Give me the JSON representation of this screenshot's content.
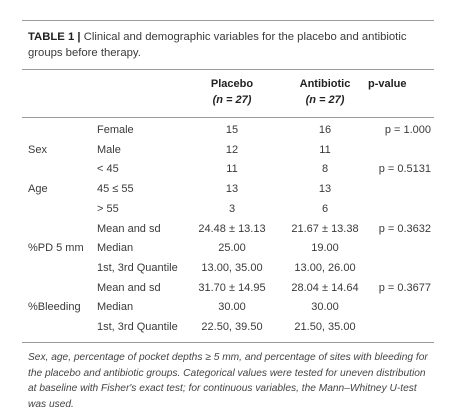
{
  "table": {
    "label": "TABLE 1 |",
    "caption": "Clinical and demographic variables for the placebo and antibiotic groups before therapy.",
    "header": [
      [
        "Placebo",
        "(n = 27)"
      ],
      [
        "Antibiotic",
        "(n = 27)"
      ],
      [
        "p-value"
      ]
    ],
    "rows": [
      [
        null,
        "Female",
        "15",
        "16",
        "p = 1.000"
      ],
      [
        "Sex",
        "Male",
        "12",
        "11",
        null
      ],
      [
        null,
        "< 45",
        "11",
        "8",
        "p = 0.5131"
      ],
      [
        "Age",
        "45 ≤ 55",
        "13",
        "13",
        null
      ],
      [
        null,
        "> 55",
        "3",
        "6",
        null
      ],
      [
        null,
        "Mean and sd",
        "24.48 ± 13.13",
        "21.67 ± 13.38",
        "p = 0.3632"
      ],
      [
        "%PD 5 mm",
        "Median",
        "25.00",
        "19.00",
        null
      ],
      [
        null,
        "1st, 3rd Quantile",
        "13.00, 35.00",
        "13.00, 26.00",
        null
      ],
      [
        null,
        "Mean and sd",
        "31.70 ± 14.95",
        "28.04 ± 14.64",
        "p = 0.3677"
      ],
      [
        "%Bleeding",
        "Median",
        "30.00",
        "30.00",
        null
      ],
      [
        null,
        "1st, 3rd Quantile",
        "22.50, 39.50",
        "21.50, 35.00",
        null
      ]
    ],
    "footnote": "Sex, age, percentage of pocket depths ≥ 5 mm, and percentage of sites with bleeding for the placebo and antibiotic groups. Categorical values were tested for uneven distribution at baseline with Fisher's exact test; for continuous variables, the Mann–Whitney U-test was used."
  }
}
